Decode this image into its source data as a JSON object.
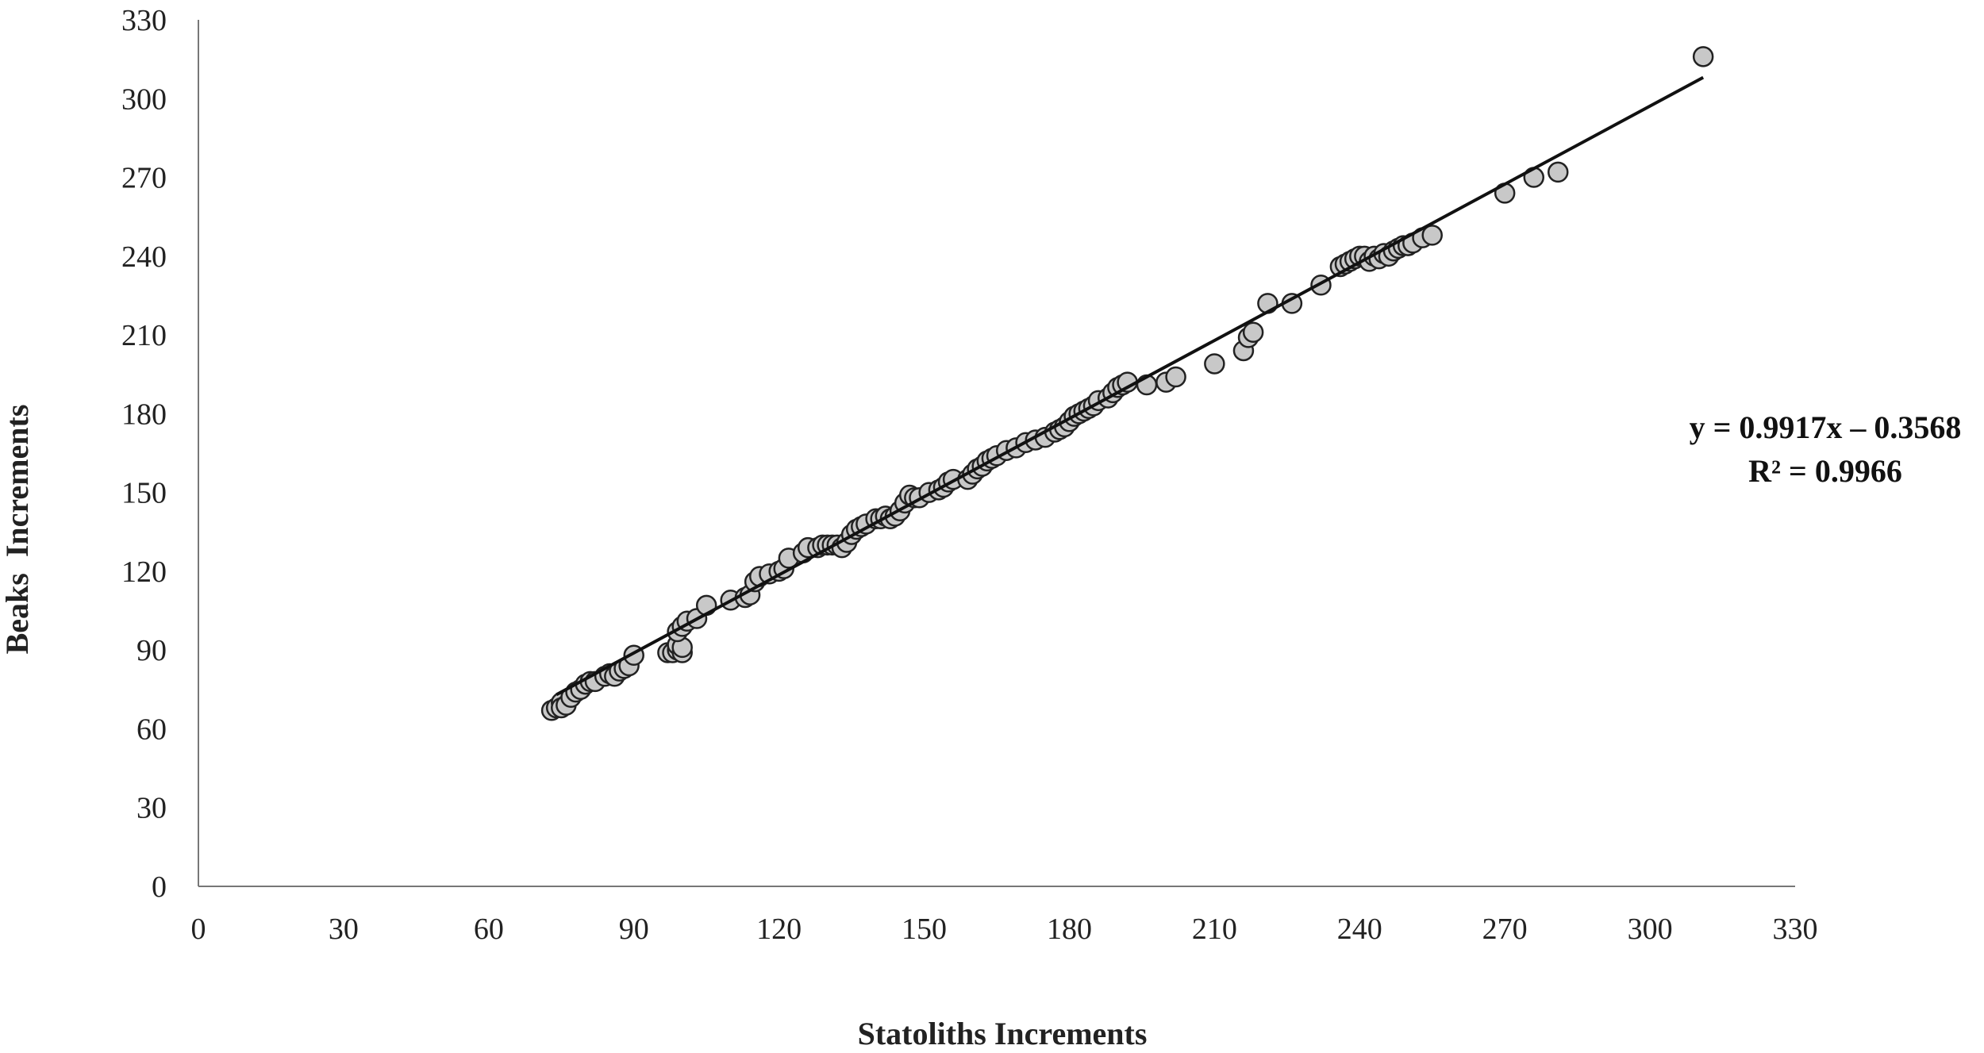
{
  "chart_data": {
    "type": "scatter",
    "title": "",
    "xlabel": "Statoliths Increments",
    "ylabel": "Beaks  Increments",
    "xlim": [
      0,
      330
    ],
    "ylim": [
      0,
      330
    ],
    "x_ticks": [
      "0",
      "30",
      "60",
      "90",
      "120",
      "150",
      "180",
      "210",
      "240",
      "270",
      "300",
      "330"
    ],
    "y_ticks": [
      "0",
      "30",
      "60",
      "90",
      "120",
      "150",
      "180",
      "210",
      "240",
      "270",
      "300",
      "330"
    ],
    "grid": false,
    "legend": "none",
    "marker_fill": "#c8c8c8",
    "marker_edge": "#222222",
    "trendline": {
      "slope": 0.9917,
      "intercept": -0.3568,
      "x_range": [
        74,
        311
      ],
      "color": "#111111"
    },
    "annotations": [
      "y = 0.9917x – 0.3568",
      "R² = 0.9966"
    ],
    "points": [
      [
        73,
        67
      ],
      [
        74,
        68
      ],
      [
        75,
        70
      ],
      [
        75,
        68
      ],
      [
        76,
        69
      ],
      [
        77,
        72
      ],
      [
        78,
        74
      ],
      [
        79,
        75
      ],
      [
        80,
        77
      ],
      [
        81,
        78
      ],
      [
        82,
        78
      ],
      [
        84,
        80
      ],
      [
        85,
        81
      ],
      [
        86,
        80
      ],
      [
        87,
        82
      ],
      [
        88,
        83
      ],
      [
        89,
        84
      ],
      [
        90,
        88
      ],
      [
        97,
        89
      ],
      [
        98,
        89
      ],
      [
        99,
        90
      ],
      [
        99,
        92
      ],
      [
        100,
        89
      ],
      [
        100,
        91
      ],
      [
        99,
        97
      ],
      [
        100,
        99
      ],
      [
        101,
        101
      ],
      [
        103,
        102
      ],
      [
        105,
        107
      ],
      [
        110,
        109
      ],
      [
        113,
        110
      ],
      [
        114,
        111
      ],
      [
        115,
        116
      ],
      [
        116,
        118
      ],
      [
        118,
        119
      ],
      [
        120,
        120
      ],
      [
        121,
        121
      ],
      [
        122,
        125
      ],
      [
        125,
        127
      ],
      [
        126,
        129
      ],
      [
        128,
        129
      ],
      [
        129,
        130
      ],
      [
        130,
        130
      ],
      [
        131,
        130
      ],
      [
        132,
        130
      ],
      [
        133,
        129
      ],
      [
        134,
        131
      ],
      [
        135,
        134
      ],
      [
        136,
        136
      ],
      [
        137,
        137
      ],
      [
        138,
        138
      ],
      [
        140,
        140
      ],
      [
        141,
        140
      ],
      [
        142,
        141
      ],
      [
        143,
        140
      ],
      [
        144,
        141
      ],
      [
        145,
        143
      ],
      [
        146,
        146
      ],
      [
        147,
        149
      ],
      [
        148,
        148
      ],
      [
        149,
        148
      ],
      [
        151,
        150
      ],
      [
        153,
        151
      ],
      [
        154,
        152
      ],
      [
        155,
        154
      ],
      [
        156,
        155
      ],
      [
        159,
        155
      ],
      [
        160,
        157
      ],
      [
        161,
        159
      ],
      [
        162,
        160
      ],
      [
        163,
        162
      ],
      [
        164,
        163
      ],
      [
        165,
        164
      ],
      [
        167,
        166
      ],
      [
        169,
        167
      ],
      [
        171,
        169
      ],
      [
        173,
        170
      ],
      [
        175,
        171
      ],
      [
        177,
        173
      ],
      [
        178,
        174
      ],
      [
        179,
        175
      ],
      [
        180,
        177
      ],
      [
        181,
        179
      ],
      [
        182,
        180
      ],
      [
        183,
        181
      ],
      [
        184,
        182
      ],
      [
        185,
        183
      ],
      [
        186,
        185
      ],
      [
        188,
        186
      ],
      [
        189,
        188
      ],
      [
        190,
        190
      ],
      [
        191,
        191
      ],
      [
        192,
        192
      ],
      [
        196,
        191
      ],
      [
        200,
        192
      ],
      [
        202,
        194
      ],
      [
        210,
        199
      ],
      [
        216,
        204
      ],
      [
        217,
        209
      ],
      [
        218,
        211
      ],
      [
        221,
        222
      ],
      [
        226,
        222
      ],
      [
        232,
        229
      ],
      [
        236,
        236
      ],
      [
        237,
        237
      ],
      [
        238,
        238
      ],
      [
        239,
        239
      ],
      [
        240,
        240
      ],
      [
        241,
        240
      ],
      [
        242,
        238
      ],
      [
        243,
        240
      ],
      [
        244,
        239
      ],
      [
        245,
        241
      ],
      [
        246,
        240
      ],
      [
        247,
        242
      ],
      [
        248,
        243
      ],
      [
        249,
        244
      ],
      [
        250,
        244
      ],
      [
        251,
        245
      ],
      [
        253,
        247
      ],
      [
        255,
        248
      ],
      [
        270,
        264
      ],
      [
        276,
        270
      ],
      [
        281,
        272
      ],
      [
        311,
        316
      ]
    ]
  }
}
